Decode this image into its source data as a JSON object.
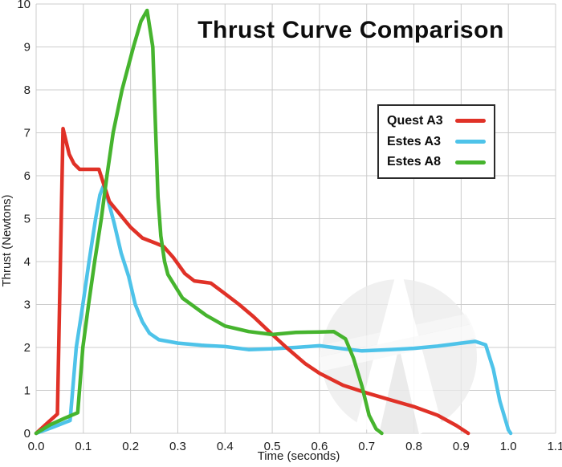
{
  "title": "Thrust Curve Comparison",
  "watermark": {
    "letter": "A",
    "description": "light gray circular logo watermark with white A and diagonal ribbon"
  },
  "colors": {
    "quest_a3": "#e03127",
    "estes_a3": "#4ec3e9",
    "estes_a8": "#46b42e",
    "gridline": "#cccccc",
    "text": "#1c1c1c",
    "legend_border": "#2b2b2b"
  },
  "chart_data": {
    "type": "line",
    "title": "Thrust Curve Comparison",
    "xlabel": "Time (seconds)",
    "ylabel": "Thrust (Newtons)",
    "xlim": [
      0,
      1.1
    ],
    "ylim": [
      0,
      10
    ],
    "grid": true,
    "legend_position": "upper right",
    "x_tick_values": [
      0,
      0.1,
      0.2,
      0.3,
      0.4,
      0.5,
      0.6,
      0.7,
      0.8,
      0.9,
      1.0,
      1.1
    ],
    "x_tick_labels": [
      "0.0",
      "0.1",
      "0.2",
      "0.3",
      "0.4",
      "0.5",
      "0.6",
      "0.7",
      "0.8",
      "0.9",
      "1.0",
      "1.1"
    ],
    "y_tick_values": [
      0,
      1,
      2,
      3,
      4,
      5,
      6,
      7,
      8,
      9,
      10
    ],
    "y_tick_labels": [
      "0",
      "1",
      "2",
      "3",
      "4",
      "5",
      "6",
      "7",
      "8",
      "9",
      "10"
    ],
    "draw_order": [
      1,
      0,
      2
    ],
    "series": [
      {
        "name": "Quest A3",
        "color": "#e03127",
        "peak_thrust_n": 7.1,
        "burn_end_s": 0.915,
        "points": [
          [
            0,
            0
          ],
          [
            0.025,
            0.25
          ],
          [
            0.045,
            0.45
          ],
          [
            0.057,
            7.1
          ],
          [
            0.07,
            6.5
          ],
          [
            0.08,
            6.28
          ],
          [
            0.092,
            6.15
          ],
          [
            0.133,
            6.15
          ],
          [
            0.155,
            5.4
          ],
          [
            0.17,
            5.2
          ],
          [
            0.2,
            4.8
          ],
          [
            0.225,
            4.55
          ],
          [
            0.255,
            4.42
          ],
          [
            0.27,
            4.35
          ],
          [
            0.29,
            4.1
          ],
          [
            0.315,
            3.72
          ],
          [
            0.335,
            3.55
          ],
          [
            0.37,
            3.5
          ],
          [
            0.4,
            3.25
          ],
          [
            0.43,
            3.0
          ],
          [
            0.46,
            2.72
          ],
          [
            0.5,
            2.3
          ],
          [
            0.53,
            2.0
          ],
          [
            0.57,
            1.62
          ],
          [
            0.6,
            1.4
          ],
          [
            0.65,
            1.12
          ],
          [
            0.7,
            0.94
          ],
          [
            0.75,
            0.78
          ],
          [
            0.8,
            0.62
          ],
          [
            0.85,
            0.42
          ],
          [
            0.89,
            0.18
          ],
          [
            0.915,
            0
          ]
        ]
      },
      {
        "name": "Estes A3",
        "color": "#4ec3e9",
        "peak_thrust_n": 5.75,
        "burn_end_s": 1.005,
        "points": [
          [
            0,
            0
          ],
          [
            0.035,
            0.14
          ],
          [
            0.072,
            0.3
          ],
          [
            0.085,
            2.0
          ],
          [
            0.099,
            3.0
          ],
          [
            0.112,
            4.0
          ],
          [
            0.126,
            5.0
          ],
          [
            0.135,
            5.55
          ],
          [
            0.142,
            5.75
          ],
          [
            0.152,
            5.45
          ],
          [
            0.165,
            4.9
          ],
          [
            0.18,
            4.2
          ],
          [
            0.196,
            3.65
          ],
          [
            0.21,
            3.0
          ],
          [
            0.225,
            2.6
          ],
          [
            0.24,
            2.33
          ],
          [
            0.26,
            2.18
          ],
          [
            0.3,
            2.1
          ],
          [
            0.35,
            2.05
          ],
          [
            0.4,
            2.02
          ],
          [
            0.45,
            1.95
          ],
          [
            0.5,
            1.97
          ],
          [
            0.55,
            2.0
          ],
          [
            0.6,
            2.04
          ],
          [
            0.65,
            1.97
          ],
          [
            0.69,
            1.92
          ],
          [
            0.75,
            1.95
          ],
          [
            0.8,
            1.98
          ],
          [
            0.85,
            2.03
          ],
          [
            0.9,
            2.1
          ],
          [
            0.93,
            2.14
          ],
          [
            0.952,
            2.06
          ],
          [
            0.968,
            1.5
          ],
          [
            0.982,
            0.75
          ],
          [
            1.0,
            0.08
          ],
          [
            1.005,
            0
          ]
        ]
      },
      {
        "name": "Estes A8",
        "color": "#46b42e",
        "peak_thrust_n": 9.85,
        "burn_end_s": 0.732,
        "points": [
          [
            0,
            0
          ],
          [
            0.03,
            0.2
          ],
          [
            0.06,
            0.35
          ],
          [
            0.088,
            0.48
          ],
          [
            0.099,
            2.0
          ],
          [
            0.111,
            3.0
          ],
          [
            0.124,
            4.0
          ],
          [
            0.138,
            5.0
          ],
          [
            0.15,
            6.0
          ],
          [
            0.163,
            7.0
          ],
          [
            0.182,
            8.0
          ],
          [
            0.206,
            9.0
          ],
          [
            0.222,
            9.6
          ],
          [
            0.235,
            9.85
          ],
          [
            0.247,
            9.0
          ],
          [
            0.252,
            7.4
          ],
          [
            0.258,
            5.5
          ],
          [
            0.264,
            4.6
          ],
          [
            0.272,
            4.0
          ],
          [
            0.279,
            3.7
          ],
          [
            0.31,
            3.15
          ],
          [
            0.36,
            2.75
          ],
          [
            0.4,
            2.5
          ],
          [
            0.45,
            2.37
          ],
          [
            0.5,
            2.3
          ],
          [
            0.55,
            2.35
          ],
          [
            0.6,
            2.36
          ],
          [
            0.63,
            2.37
          ],
          [
            0.655,
            2.2
          ],
          [
            0.672,
            1.75
          ],
          [
            0.69,
            1.1
          ],
          [
            0.705,
            0.42
          ],
          [
            0.72,
            0.1
          ],
          [
            0.732,
            0
          ]
        ]
      }
    ]
  }
}
